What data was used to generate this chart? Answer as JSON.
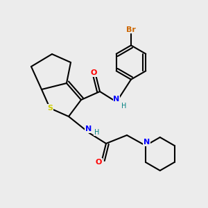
{
  "bg_color": "#ececec",
  "atom_colors": {
    "C": "#000000",
    "N": "#0000ff",
    "O": "#ff0000",
    "S": "#cccc00",
    "Br": "#cc6600",
    "H": "#008080"
  },
  "bond_lw": 1.5,
  "figsize": [
    3.0,
    3.0
  ],
  "dpi": 100
}
